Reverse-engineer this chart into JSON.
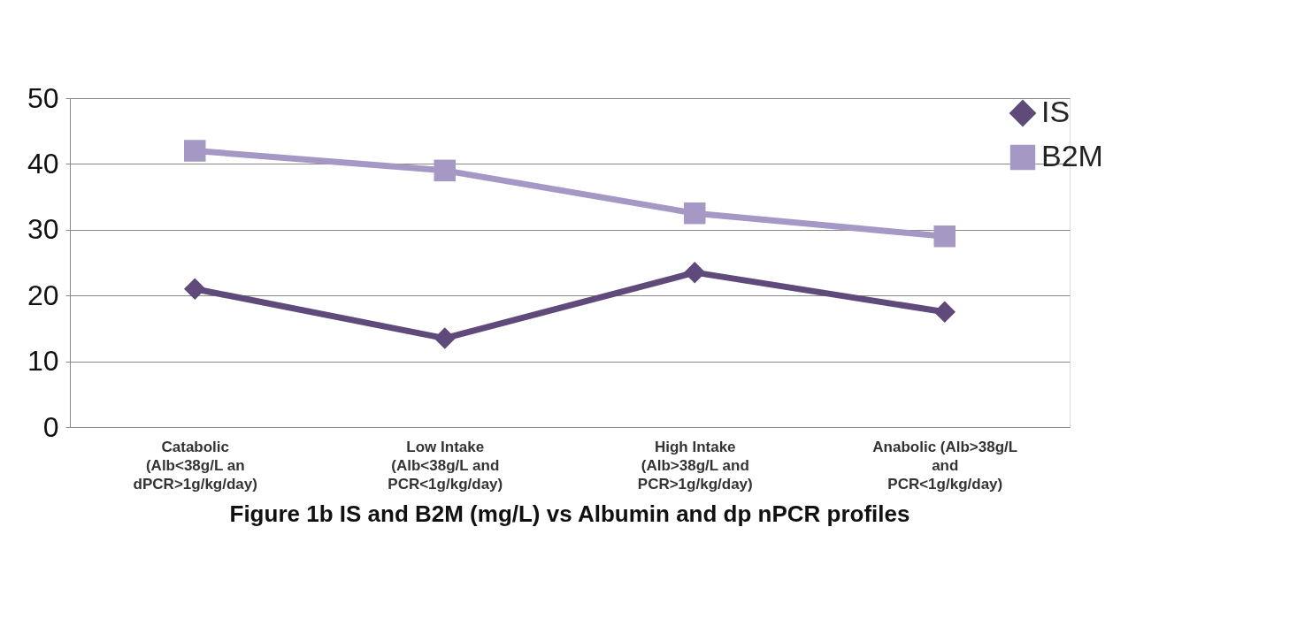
{
  "chart_data": {
    "type": "line",
    "title": "Figure 1b IS and B2M (mg/L) vs  Albumin and dp nPCR profiles",
    "categories": [
      "Catabolic\n(Alb<38g/L an\ndPCR>1g/kg/day)",
      "Low Intake\n(Alb<38g/L and\nPCR<1g/kg/day)",
      "High Intake\n(Alb>38g/L and\nPCR>1g/kg/day)",
      "Anabolic (Alb>38g/L\nand\nPCR<1g/kg/day)"
    ],
    "series": [
      {
        "name": "IS",
        "color": "#604a7b",
        "marker": "diamond",
        "values": [
          21,
          13.5,
          23.5,
          17.5
        ]
      },
      {
        "name": "B2M",
        "color": "#a598c4",
        "marker": "square",
        "values": [
          42,
          39,
          32.5,
          29
        ]
      }
    ],
    "ylim": [
      0,
      50
    ],
    "yticks": [
      0,
      10,
      20,
      30,
      40,
      50
    ],
    "grid": "y",
    "legend": "right",
    "line_style": "solid"
  }
}
